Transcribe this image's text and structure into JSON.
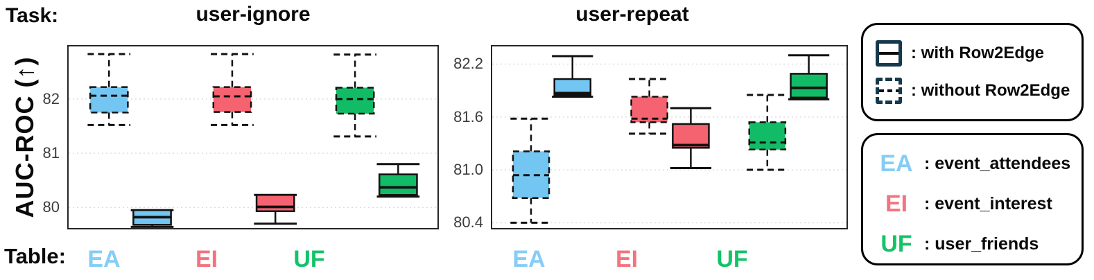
{
  "task_label": "Task:",
  "table_label": "Table:",
  "ylabel": "AUC-ROC (↑)",
  "row2edge_legend": [
    {
      "icon": "solid-box-icon",
      "style": "solid",
      "label": ": with Row2Edge"
    },
    {
      "icon": "dashed-box-icon",
      "style": "dashed",
      "label": ": without Row2Edge"
    }
  ],
  "tables": [
    {
      "abbr": "EA",
      "label": ": event_attendees",
      "fill": "#74C6F2",
      "text_color": "#85CDF5"
    },
    {
      "abbr": "EI",
      "label": ": event_interest",
      "fill": "#F4636F",
      "text_color": "#F4737F"
    },
    {
      "abbr": "UF",
      "label": ": user_friends",
      "fill": "#12BC66",
      "text_color": "#13C368"
    }
  ],
  "colors": {
    "box_edge": "#111111",
    "legend_icon": "#16384C",
    "grid": "#DCDCDC",
    "tick_label": "#3C3C3C",
    "panel_border": "#262626"
  },
  "chart_data": [
    {
      "type": "boxplot",
      "title": "user-ignore",
      "ylabel": "AUC-ROC (↑)",
      "xlabel": "",
      "grid": true,
      "ylim": [
        79.62,
        82.97
      ],
      "yticks": [
        80,
        81,
        82
      ],
      "ytick_labels": [
        "80",
        "81",
        "82"
      ],
      "categories": [
        "EA",
        "EI",
        "UF"
      ],
      "series": [
        {
          "name": "without Row2Edge",
          "style": "dashed",
          "boxes": [
            {
              "category": "EA",
              "whisker_low": 81.52,
              "q1": 81.75,
              "median": 82.06,
              "q3": 82.22,
              "whisker_high": 82.83
            },
            {
              "category": "EI",
              "whisker_low": 81.52,
              "q1": 81.76,
              "median": 82.05,
              "q3": 82.22,
              "whisker_high": 82.83
            },
            {
              "category": "UF",
              "whisker_low": 81.31,
              "q1": 81.73,
              "median": 82.0,
              "q3": 82.21,
              "whisker_high": 82.82
            }
          ]
        },
        {
          "name": "with Row2Edge",
          "style": "solid",
          "boxes": [
            {
              "category": "EA",
              "whisker_low": 79.64,
              "q1": 79.68,
              "median": 79.82,
              "q3": 79.95,
              "whisker_high": 79.95
            },
            {
              "category": "EI",
              "whisker_low": 79.7,
              "q1": 79.93,
              "median": 80.01,
              "q3": 80.23,
              "whisker_high": 80.23
            },
            {
              "category": "UF",
              "whisker_low": 80.2,
              "q1": 80.23,
              "median": 80.37,
              "q3": 80.61,
              "whisker_high": 80.8
            }
          ]
        }
      ]
    },
    {
      "type": "boxplot",
      "title": "user-repeat",
      "ylabel": "",
      "xlabel": "",
      "grid": true,
      "ylim": [
        80.34,
        82.4
      ],
      "yticks": [
        80.4,
        81.0,
        81.6,
        82.2
      ],
      "ytick_labels": [
        "80.4",
        "81.0",
        "81.6",
        "82.2"
      ],
      "categories": [
        "EA",
        "EI",
        "UF"
      ],
      "series": [
        {
          "name": "without Row2Edge",
          "style": "dashed",
          "boxes": [
            {
              "category": "EA",
              "whisker_low": 80.4,
              "q1": 80.68,
              "median": 80.94,
              "q3": 81.21,
              "whisker_high": 81.58
            },
            {
              "category": "EI",
              "whisker_low": 81.41,
              "q1": 81.54,
              "median": 81.58,
              "q3": 81.83,
              "whisker_high": 82.03
            },
            {
              "category": "UF",
              "whisker_low": 81.0,
              "q1": 81.23,
              "median": 81.31,
              "q3": 81.54,
              "whisker_high": 81.85
            }
          ]
        },
        {
          "name": "with Row2Edge",
          "style": "solid",
          "boxes": [
            {
              "category": "EA",
              "whisker_low": 81.83,
              "q1": 81.85,
              "median": 81.87,
              "q3": 82.03,
              "whisker_high": 82.29
            },
            {
              "category": "EI",
              "whisker_low": 81.02,
              "q1": 81.25,
              "median": 81.28,
              "q3": 81.52,
              "whisker_high": 81.7
            },
            {
              "category": "UF",
              "whisker_low": 81.8,
              "q1": 81.82,
              "median": 81.93,
              "q3": 82.09,
              "whisker_high": 82.3
            }
          ]
        }
      ]
    }
  ]
}
